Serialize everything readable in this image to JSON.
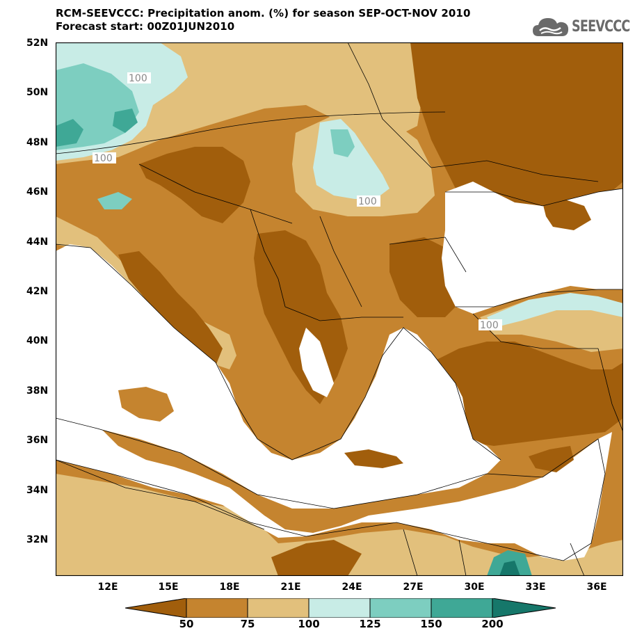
{
  "header": {
    "title_line1": "RCM-SEEVCCC: Precipitation anom. (%) for season SEP-OCT-NOV 2010",
    "title_line2": "Forecast start: 00Z01JUN2010"
  },
  "logo": {
    "text": "SEEVCCC",
    "icon": "cloud-logo-icon"
  },
  "map": {
    "variable": "Precipitation anomaly (%)",
    "lat_labels": [
      "52N",
      "50N",
      "48N",
      "46N",
      "44N",
      "42N",
      "40N",
      "38N",
      "36N",
      "34N",
      "32N"
    ],
    "lon_labels": [
      "12E",
      "15E",
      "18E",
      "21E",
      "24E",
      "27E",
      "30E",
      "33E",
      "36E"
    ],
    "contour_labels": [
      "100",
      "100",
      "100",
      "100"
    ],
    "colors": {
      "lt50": "#a15e0c",
      "50_75": "#c5842f",
      "75_100": "#e2c07c",
      "100_125": "#c8ece6",
      "125_150": "#7dcec0",
      "150_200": "#3fa896",
      "gt200": "#16776a",
      "sea": "#ffffff"
    }
  },
  "colorbar": {
    "labels": [
      "50",
      "75",
      "100",
      "125",
      "150",
      "200"
    ],
    "colors": [
      "#a15e0c",
      "#c5842f",
      "#e2c07c",
      "#c8ece6",
      "#7dcec0",
      "#3fa896",
      "#16776a"
    ]
  }
}
